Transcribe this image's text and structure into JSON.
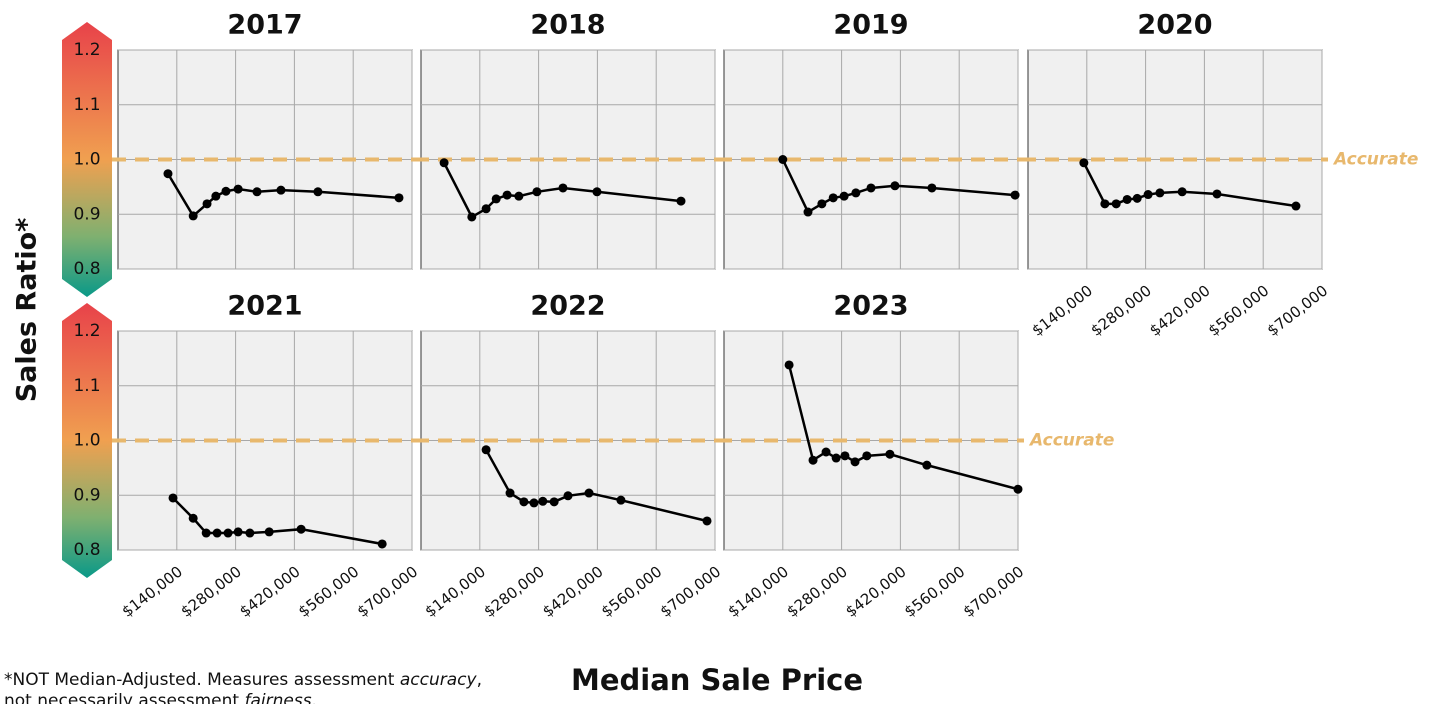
{
  "chart_data": [
    {
      "type": "line",
      "title": "2017",
      "x": [
        119000,
        179000,
        212000,
        233000,
        257000,
        286000,
        331000,
        388000,
        476000,
        669000
      ],
      "values": [
        0.974,
        0.897,
        0.919,
        0.933,
        0.942,
        0.946,
        0.941,
        0.944,
        0.941,
        0.93
      ]
    },
    {
      "type": "line",
      "title": "2018",
      "x": [
        55000,
        121000,
        155000,
        179000,
        205000,
        233000,
        276000,
        338000,
        419000,
        619000
      ],
      "values": [
        0.994,
        0.895,
        0.91,
        0.928,
        0.935,
        0.933,
        0.941,
        0.948,
        0.941,
        0.924
      ]
    },
    {
      "type": "line",
      "title": "2019",
      "x": [
        140000,
        200000,
        233000,
        260000,
        286000,
        314000,
        350000,
        407000,
        495000,
        693000
      ],
      "values": [
        1.0,
        0.904,
        0.919,
        0.93,
        0.933,
        0.939,
        0.948,
        0.952,
        0.948,
        0.935
      ]
    },
    {
      "type": "line",
      "title": "2020",
      "x": [
        133000,
        183000,
        210000,
        236000,
        260000,
        286000,
        314000,
        367000,
        450000,
        638000
      ],
      "values": [
        0.994,
        0.919,
        0.919,
        0.927,
        0.929,
        0.936,
        0.939,
        0.941,
        0.937,
        0.915
      ]
    },
    {
      "type": "line",
      "title": "2021",
      "x": [
        131000,
        179000,
        210000,
        236000,
        262000,
        286000,
        314000,
        360000,
        436000,
        629000
      ],
      "values": [
        0.895,
        0.858,
        0.831,
        0.831,
        0.831,
        0.833,
        0.831,
        0.833,
        0.838,
        0.811
      ]
    },
    {
      "type": "line",
      "title": "2022",
      "x": [
        155000,
        212000,
        245000,
        269000,
        290000,
        317000,
        350000,
        400000,
        476000,
        681000
      ],
      "values": [
        0.983,
        0.904,
        0.888,
        0.886,
        0.889,
        0.888,
        0.899,
        0.904,
        0.891,
        0.853
      ]
    },
    {
      "type": "line",
      "title": "2023",
      "x": [
        155000,
        212000,
        243000,
        267000,
        288000,
        312000,
        340000,
        395000,
        483000,
        700000
      ],
      "values": [
        1.138,
        0.964,
        0.979,
        0.968,
        0.972,
        0.961,
        0.972,
        0.975,
        0.955,
        0.911
      ]
    }
  ],
  "shared": {
    "color": "#000000",
    "xlim": [
      0,
      700000
    ],
    "xticks": [
      {
        "value": 140000,
        "label": "$140,000"
      },
      {
        "value": 280000,
        "label": "$280,000"
      },
      {
        "value": 420000,
        "label": "$420,000"
      },
      {
        "value": 560000,
        "label": "$560,000"
      },
      {
        "value": 700000,
        "label": "$700,000"
      }
    ],
    "ylim": [
      0.8,
      1.2
    ],
    "yticks": [
      0.8,
      0.9,
      {
        "value": 1.0,
        "label": "1.0"
      },
      1.1,
      1.2
    ],
    "grid": true,
    "ylabel": "Sales Ratio*",
    "xlabel": "Median Sale Price",
    "reference": {
      "value": 1.0,
      "label": "Accurate",
      "color": "#e8b86d"
    },
    "footnote": [
      [
        "*NOT Median-Adjusted. Measures assessment ",
        "accuracy",
        ","
      ],
      [
        "not necessarily assessment ",
        "fairness",
        "."
      ]
    ]
  }
}
